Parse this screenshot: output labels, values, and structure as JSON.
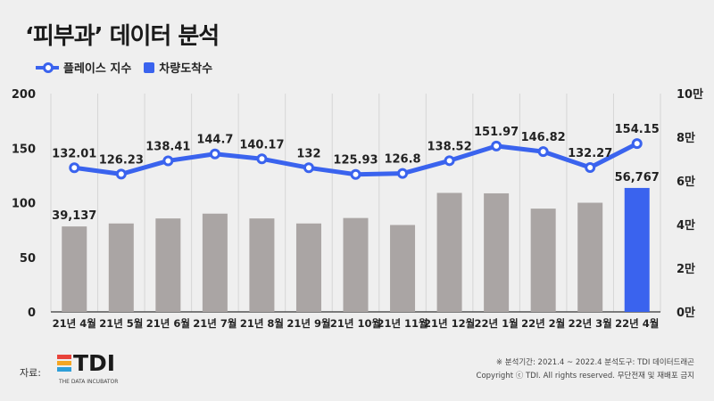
{
  "title": "‘피부과’ 데이터 분석",
  "legend": {
    "line_label": "플레이스 지수",
    "bar_label": "차량도착수"
  },
  "colors": {
    "line": "#3a63ee",
    "bar": "#aaa5a4",
    "bar_highlight": "#3a63ee",
    "background": "#efefef",
    "logo": [
      "#e8433a",
      "#f5a623",
      "#2f9fd8"
    ]
  },
  "footer": {
    "source_label": "자료:",
    "logo_text": "TDI",
    "logo_sub": "THE DATA INCUBATOR",
    "period_note": "※ 분석기간: 2021.4 ~ 2022.4    분석도구: TDI 데이터드래곤",
    "copyright": "Copyright ⓒ TDI. All rights reserved. 무단전재 및 재배포 금지"
  },
  "chart_data": {
    "type": "bar+line",
    "categories": [
      "21년 4월",
      "21년 5월",
      "21년 6월",
      "21년 7월",
      "21년 8월",
      "21년 9월",
      "21년 10월",
      "21년 11월",
      "21년 12월",
      "22년 1월",
      "22년 2월",
      "22년 3월",
      "22년 4월"
    ],
    "line": {
      "name": "플레이스 지수",
      "values": [
        132.01,
        126.23,
        138.41,
        144.7,
        140.17,
        132,
        125.93,
        126.8,
        138.52,
        151.97,
        146.82,
        132.27,
        154.15
      ],
      "labels": [
        "132.01",
        "126.23",
        "138.41",
        "144.7",
        "140.17",
        "132",
        "125.93",
        "126.8",
        "138.52",
        "151.97",
        "146.82",
        "132.27",
        "154.15"
      ],
      "axis": "left"
    },
    "bars": {
      "name": "차량도착수",
      "values": [
        39137,
        40500,
        42800,
        45000,
        42800,
        40500,
        43000,
        39800,
        54500,
        54300,
        47300,
        50000,
        56767
      ],
      "labels": [
        "39,137",
        "",
        "",
        "",
        "",
        "",
        "",
        "",
        "",
        "",
        "",
        "",
        "56,767"
      ],
      "highlight_index": 12,
      "axis": "right"
    },
    "left_axis": {
      "ylim": [
        0,
        200
      ],
      "ticks": [
        0,
        50,
        100,
        150,
        200
      ],
      "tick_labels": [
        "0",
        "50",
        "100",
        "150",
        "200"
      ]
    },
    "right_axis": {
      "ylim": [
        0,
        100000
      ],
      "ticks": [
        0,
        20000,
        40000,
        60000,
        80000,
        100000
      ],
      "tick_labels": [
        "0만",
        "2만",
        "4만",
        "6만",
        "8만",
        "10만"
      ]
    },
    "grid": "vertical"
  }
}
